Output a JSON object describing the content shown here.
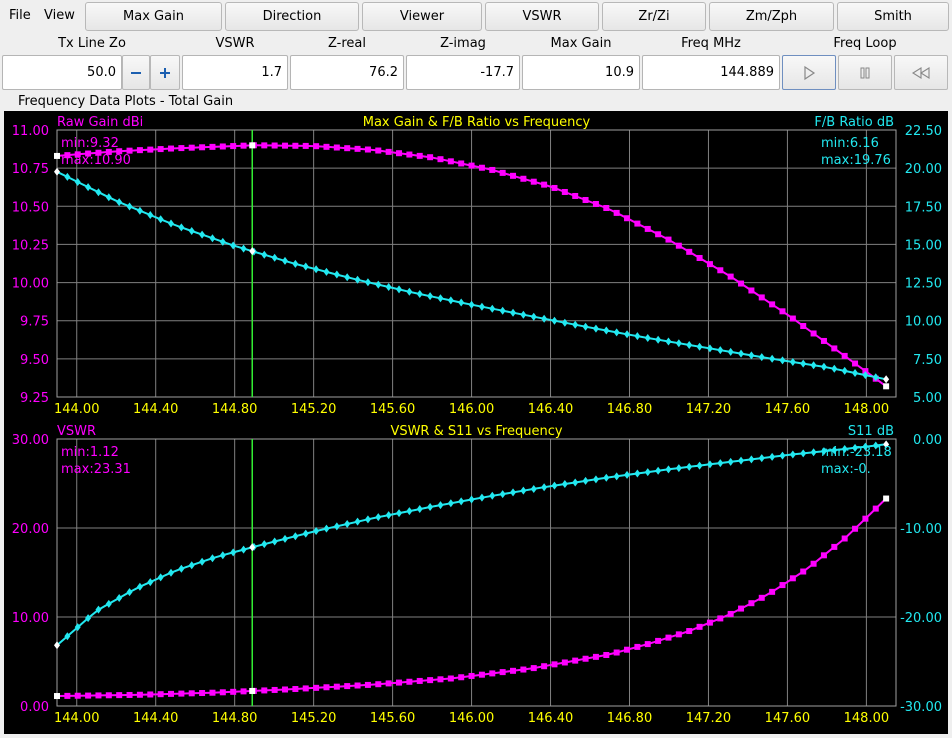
{
  "menu": {
    "file": "File",
    "view": "View"
  },
  "tabs": [
    {
      "label": "Max Gain",
      "active": true
    },
    {
      "label": "Direction",
      "active": false
    },
    {
      "label": "Viewer",
      "active": false
    },
    {
      "label": "VSWR",
      "active": true
    },
    {
      "label": "Zr/Zi",
      "active": false
    },
    {
      "label": "Zm/Zph",
      "active": false
    },
    {
      "label": "Smith",
      "active": false
    }
  ],
  "fields": {
    "tx_line_zo": {
      "label": "Tx Line Zo",
      "value": "50.0"
    },
    "vswr": {
      "label": "VSWR",
      "value": "1.7"
    },
    "z_real": {
      "label": "Z-real",
      "value": "76.2"
    },
    "z_imag": {
      "label": "Z-imag",
      "value": "-17.7"
    },
    "max_gain": {
      "label": "Max Gain",
      "value": "10.9"
    },
    "freq_mhz": {
      "label": "Freq MHz",
      "value": "144.889"
    },
    "freq_loop": {
      "label": "Freq Loop"
    }
  },
  "icons": {
    "minus": "minus-icon",
    "plus": "plus-icon",
    "play": "play-icon",
    "pause": "pause-icon",
    "rewind": "rewind-icon"
  },
  "section_title": "Frequency Data Plots - Total Gain",
  "colors": {
    "magenta": "#ff00ff",
    "cyan": "#22e8f0",
    "yellow": "#ffff00",
    "cursor": "#33ee33",
    "grid": "#808080",
    "background": "#000000"
  },
  "chart_data": [
    {
      "type": "line",
      "title": "Max Gain & F/B Ratio vs Frequency",
      "xlim": [
        143.9,
        148.15
      ],
      "xticks": [
        "144.00",
        "144.40",
        "144.80",
        "145.20",
        "145.60",
        "146.00",
        "146.40",
        "146.80",
        "147.20",
        "147.60",
        "148.00"
      ],
      "cursor_x": 144.889,
      "left_axis": {
        "label": "Raw Gain dBi",
        "ylim": [
          9.25,
          11.0
        ],
        "ticks": [
          "11.00",
          "10.75",
          "10.50",
          "10.25",
          "10.00",
          "9.75",
          "9.50",
          "9.25"
        ]
      },
      "right_axis": {
        "label": "F/B Ratio dB",
        "ylim": [
          5.0,
          22.5
        ],
        "ticks": [
          "22.50",
          "20.00",
          "17.50",
          "15.00",
          "12.50",
          "10.00",
          "7.50",
          "5.00"
        ]
      },
      "left_stats": {
        "min": "min:9.32",
        "max": "max:10.90"
      },
      "right_stats": {
        "min": "min:6.16",
        "max": "max:19.76"
      },
      "series": [
        {
          "name": "Raw Gain dBi",
          "axis": "left",
          "color": "#ff00ff",
          "x": [
            143.9,
            144.2,
            144.5,
            144.8,
            144.9,
            145.2,
            145.5,
            145.8,
            146.1,
            146.4,
            146.7,
            147.0,
            147.3,
            147.6,
            147.9,
            148.1
          ],
          "y": [
            10.83,
            10.86,
            10.88,
            10.895,
            10.9,
            10.895,
            10.87,
            10.82,
            10.74,
            10.63,
            10.48,
            10.28,
            10.05,
            9.79,
            9.51,
            9.32
          ]
        },
        {
          "name": "F/B Ratio dB",
          "axis": "right",
          "color": "#22e8f0",
          "x": [
            143.9,
            144.2,
            144.5,
            144.8,
            145.1,
            145.4,
            145.7,
            146.0,
            146.3,
            146.6,
            146.9,
            147.2,
            147.5,
            147.8,
            148.1
          ],
          "y": [
            19.76,
            17.85,
            16.25,
            14.9,
            13.75,
            12.75,
            11.85,
            11.05,
            10.3,
            9.55,
            8.85,
            8.2,
            7.55,
            6.95,
            6.16
          ]
        }
      ]
    },
    {
      "type": "line",
      "title": "VSWR & S11 vs Frequency",
      "xlim": [
        143.9,
        148.15
      ],
      "xticks": [
        "144.00",
        "144.40",
        "144.80",
        "145.20",
        "145.60",
        "146.00",
        "146.40",
        "146.80",
        "147.20",
        "147.60",
        "148.00"
      ],
      "cursor_x": 144.889,
      "left_axis": {
        "label": "VSWR",
        "ylim": [
          0,
          30
        ],
        "ticks": [
          "30.00",
          "20.00",
          "10.00",
          "0.00"
        ]
      },
      "right_axis": {
        "label": "S11 dB",
        "ylim": [
          -30,
          0
        ],
        "ticks": [
          "0.00",
          "-10.00",
          "-20.00",
          "-30.00"
        ]
      },
      "left_stats": {
        "min": "min:1.12",
        "max": "max:23.31"
      },
      "right_stats": {
        "min": "min:-23.18",
        "max": "max:-0."
      },
      "series": [
        {
          "name": "VSWR",
          "axis": "left",
          "color": "#ff00ff",
          "x": [
            143.9,
            144.3,
            144.7,
            145.1,
            145.5,
            145.9,
            146.3,
            146.7,
            146.9,
            147.1,
            147.3,
            147.5,
            147.7,
            147.9,
            148.1
          ],
          "y": [
            1.12,
            1.25,
            1.5,
            1.9,
            2.4,
            3.1,
            4.2,
            5.8,
            7.0,
            8.4,
            10.2,
            12.5,
            15.4,
            19.0,
            23.31
          ]
        },
        {
          "name": "S11 dB",
          "axis": "right",
          "color": "#22e8f0",
          "x": [
            143.9,
            144.1,
            144.3,
            144.5,
            144.7,
            144.9,
            145.2,
            145.5,
            145.8,
            146.1,
            146.4,
            146.7,
            147.0,
            147.3,
            147.6,
            147.9,
            148.1
          ],
          "y": [
            -23.18,
            -19.3,
            -16.8,
            -14.8,
            -13.3,
            -12.1,
            -10.4,
            -8.9,
            -7.6,
            -6.4,
            -5.3,
            -4.3,
            -3.4,
            -2.6,
            -1.8,
            -1.1,
            -0.6
          ]
        }
      ]
    }
  ]
}
